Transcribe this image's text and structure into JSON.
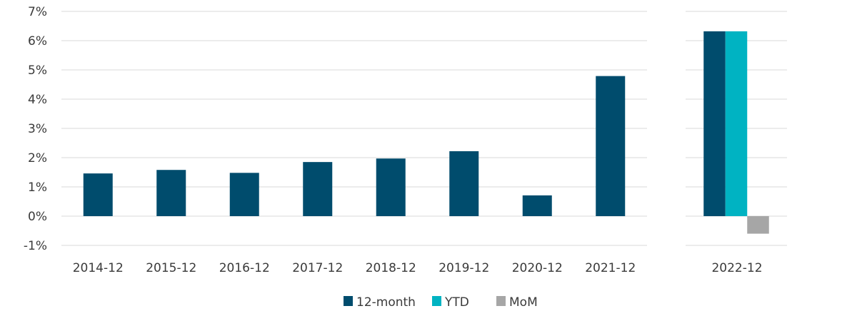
{
  "chart_data": [
    {
      "type": "bar",
      "categories": [
        "2014-12",
        "2015-12",
        "2016-12",
        "2017-12",
        "2018-12",
        "2019-12",
        "2020-12",
        "2021-12"
      ],
      "series": [
        {
          "name": "12-month",
          "values": [
            1.46,
            1.58,
            1.48,
            1.85,
            1.97,
            2.22,
            0.71,
            4.79
          ]
        }
      ],
      "ylim": [
        -1,
        7
      ],
      "yticks": [
        "-1%",
        "0%",
        "1%",
        "2%",
        "3%",
        "4%",
        "5%",
        "6%",
        "7%"
      ],
      "grid": true
    },
    {
      "type": "bar",
      "categories": [
        "2022-12"
      ],
      "series": [
        {
          "name": "12-month",
          "values": [
            6.32
          ]
        },
        {
          "name": "YTD",
          "values": [
            6.32
          ]
        },
        {
          "name": "MoM",
          "values": [
            -0.6
          ]
        }
      ],
      "ylim": [
        -1,
        7
      ],
      "grid": true
    }
  ],
  "legend": {
    "placement": "bottom-center",
    "items": [
      {
        "label": "12-month",
        "color": "#004c6d"
      },
      {
        "label": "YTD",
        "color": "#00b3c2"
      },
      {
        "label": "MoM",
        "color": "#a6a6a6"
      }
    ]
  },
  "colors": {
    "twelve_month": "#004c6d",
    "ytd": "#00b3c2",
    "mom": "#a6a6a6",
    "grid": "#d9d9d9"
  }
}
